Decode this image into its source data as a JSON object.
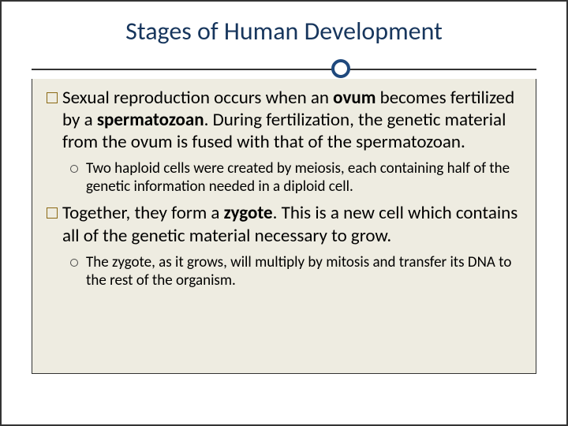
{
  "slide": {
    "title": "Stages of Human Development",
    "background_color": "#ffffff",
    "content_background": "#eeece1",
    "border_color": "#333333",
    "title_color": "#17365d",
    "text_color": "#000000",
    "accent_circle_color": "#1f497d",
    "square_bullet_color": "#8b6914",
    "circle_bullet_color": "#4a4a4a",
    "title_fontsize": 32,
    "body_fontsize": 23,
    "sub_fontsize": 19
  },
  "bullets": [
    {
      "level": 1,
      "runs": [
        {
          "t": "Sexual reproduction occurs when an ",
          "b": false
        },
        {
          "t": "ovum",
          "b": true
        },
        {
          "t": " becomes fertilized by a ",
          "b": false
        },
        {
          "t": "spermatozoan",
          "b": true
        },
        {
          "t": ".  During fertilization, the genetic material from the ovum is fused with that of the spermatozoan.",
          "b": false
        }
      ]
    },
    {
      "level": 2,
      "runs": [
        {
          "t": "Two haploid cells were created by meiosis, each containing half of the genetic information needed in a diploid cell.",
          "b": false
        }
      ]
    },
    {
      "level": 1,
      "runs": [
        {
          "t": "Together, they form a ",
          "b": false
        },
        {
          "t": "zygote",
          "b": true
        },
        {
          "t": ".  This is a new cell which contains all of the genetic material necessary to grow.",
          "b": false
        }
      ]
    },
    {
      "level": 2,
      "runs": [
        {
          "t": "The zygote, as it grows, will multiply by mitosis and transfer its DNA to the rest of the organism.",
          "b": false
        }
      ]
    }
  ]
}
